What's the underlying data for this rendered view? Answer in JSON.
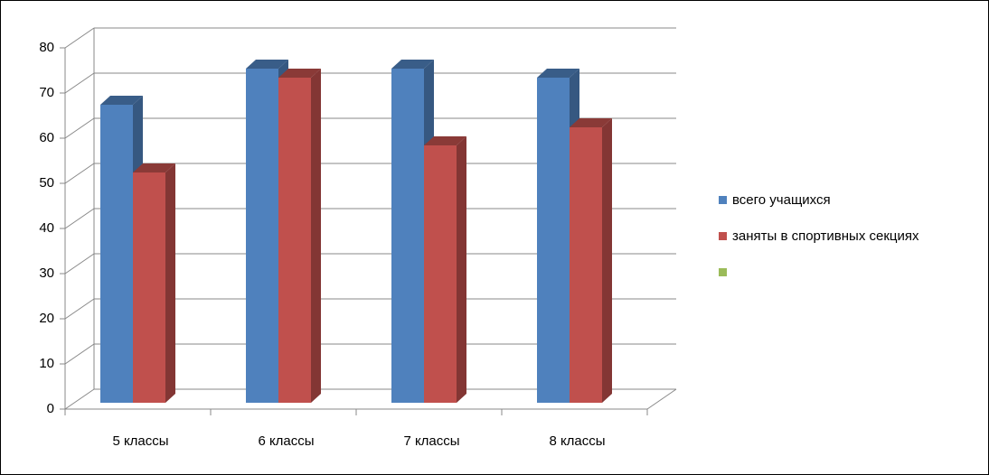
{
  "chart_data": {
    "type": "bar3d",
    "categories": [
      "5 классы",
      "6 классы",
      "7 классы",
      "8 классы"
    ],
    "series": [
      {
        "name": "всего учащихся",
        "color": "#4f81bd",
        "values": [
          66,
          74,
          74,
          72
        ]
      },
      {
        "name": "заняты в спортивных секциях",
        "color": "#c0504d",
        "values": [
          51,
          72,
          57,
          61
        ]
      },
      {
        "name": null,
        "color": "#9bbb59",
        "values": [
          null,
          null,
          null,
          null
        ]
      }
    ],
    "ylim": [
      0,
      80
    ],
    "yticks": [
      0,
      10,
      20,
      30,
      40,
      50,
      60,
      70,
      80
    ],
    "grid": true,
    "legend": "right"
  }
}
